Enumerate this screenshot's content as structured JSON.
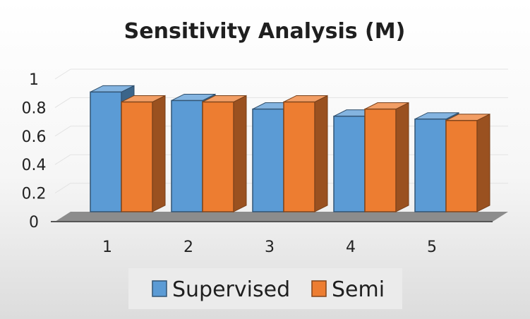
{
  "chart_data": {
    "type": "bar",
    "title": "Sensitivity Analysis (M)",
    "categories": [
      "1",
      "2",
      "3",
      "4",
      "5"
    ],
    "series": [
      {
        "name": "Supervised",
        "values": [
          0.84,
          0.78,
          0.72,
          0.67,
          0.65
        ],
        "color": "#5b9bd5"
      },
      {
        "name": "Semi",
        "values": [
          0.77,
          0.77,
          0.77,
          0.72,
          0.64
        ],
        "color": "#ed7d31"
      }
    ],
    "ylim": [
      0,
      1
    ],
    "yticks": [
      "0",
      "0.2",
      "0.4",
      "0.6",
      "0.8",
      "1"
    ],
    "grid": true,
    "legend": "bottom",
    "style": "3d-clustered-column"
  }
}
